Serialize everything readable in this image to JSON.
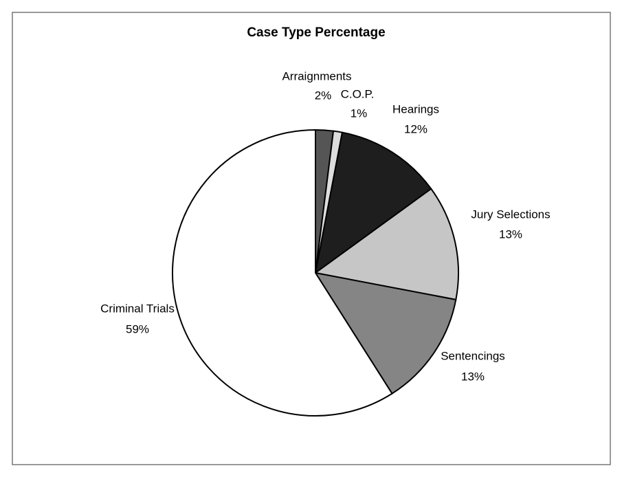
{
  "chart_data": {
    "type": "pie",
    "title": "Case Type Percentage",
    "categories": [
      "Arraignments",
      "C.O.P.",
      "Hearings",
      "Jury Selections",
      "Sentencings",
      "Criminal Trials"
    ],
    "values": [
      2,
      1,
      12,
      13,
      13,
      59
    ],
    "value_labels": [
      "2%",
      "1%",
      "12%",
      "13%",
      "13%",
      "59%"
    ],
    "colors": [
      "#555555",
      "#dddddd",
      "#1e1e1e",
      "#c6c6c6",
      "#858585",
      "#ffffff"
    ]
  }
}
